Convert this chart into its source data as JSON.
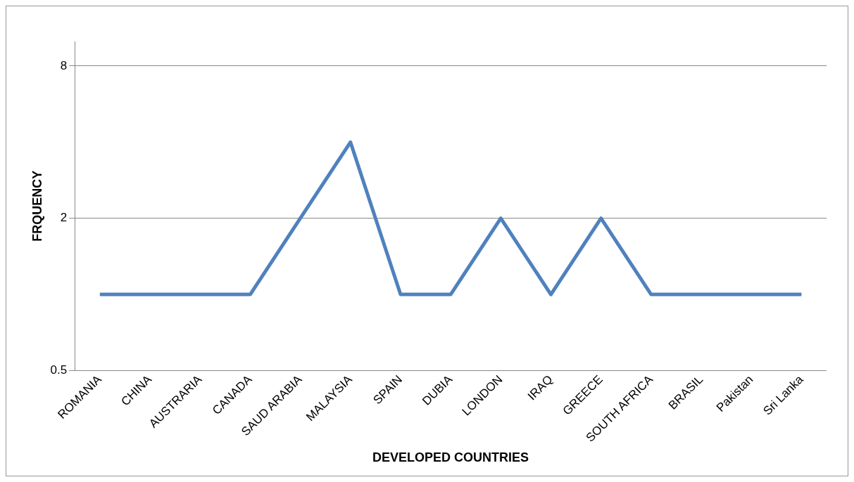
{
  "chart_data": {
    "type": "line",
    "xlabel": "DEVELOPED COUNTRIES",
    "ylabel": "FRQUENCY",
    "categories": [
      "ROMANIA",
      "CHINA",
      "AUSTRARIA",
      "CANADA",
      "SAUD ARABIA",
      "MALAYSIA",
      "SPAIN",
      "DUBIA",
      "LONDON",
      "IRAQ",
      "GREECE",
      "SOUTH AFRICA",
      "BRASIL",
      "Pakistan",
      "Sri Lanka"
    ],
    "series": [
      {
        "color": "#4f81bd",
        "values": [
          1,
          1,
          1,
          1,
          2,
          4,
          1,
          1,
          2,
          1,
          2,
          1,
          1,
          1,
          1
        ]
      }
    ],
    "log": true,
    "ylim": [
      0.5,
      10
    ],
    "yticks": [
      0.5,
      2,
      8
    ],
    "grid": "y",
    "legend": false
  }
}
